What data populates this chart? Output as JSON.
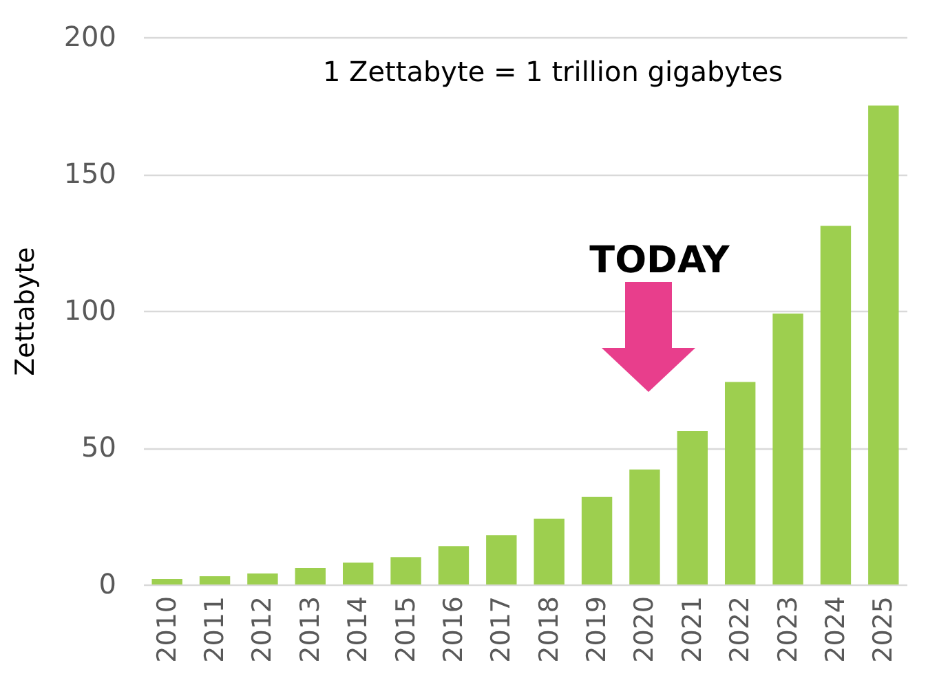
{
  "chart_data": {
    "type": "bar",
    "ylabel": "Zettabyte",
    "categories": [
      "2010",
      "2011",
      "2012",
      "2013",
      "2014",
      "2015",
      "2016",
      "2017",
      "2018",
      "2019",
      "2020",
      "2021",
      "2022",
      "2023",
      "2024",
      "2025"
    ],
    "values": [
      2,
      3,
      4,
      6,
      8,
      10,
      14,
      18,
      24,
      32,
      42,
      56,
      74,
      99,
      131,
      175
    ],
    "color": "#9dcf4f",
    "ylim": [
      0,
      200
    ],
    "yticks": [
      0,
      50,
      100,
      150,
      200
    ],
    "grid": "y",
    "annotations": [
      "1 Zettabyte = 1 trillion gigabytes",
      "TODAY"
    ]
  }
}
